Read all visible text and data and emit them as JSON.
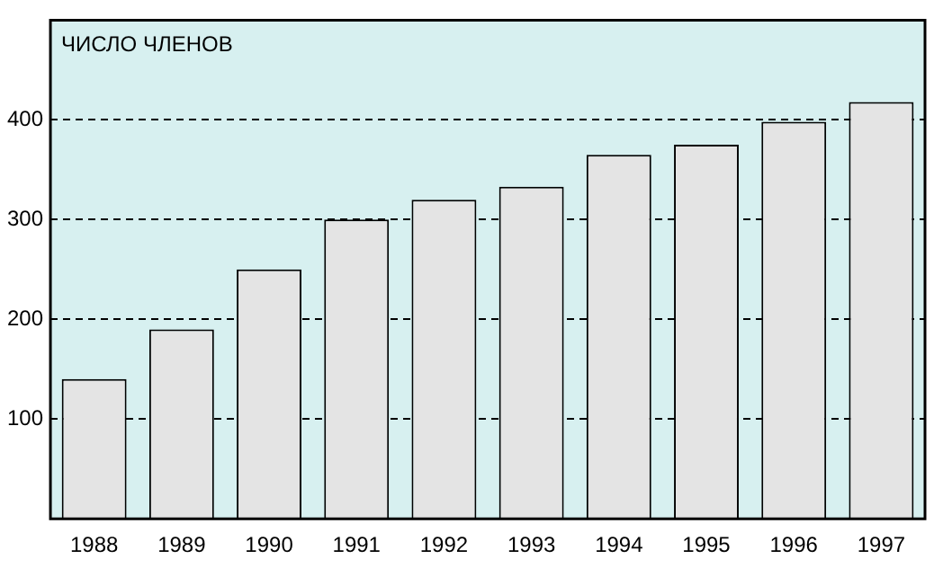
{
  "chart_data": {
    "type": "bar",
    "title": "ЧИСЛО ЧЛЕНОВ",
    "categories": [
      "1988",
      "1989",
      "1990",
      "1991",
      "1992",
      "1993",
      "1994",
      "1995",
      "1996",
      "1997"
    ],
    "values": [
      140,
      190,
      250,
      300,
      320,
      333,
      365,
      375,
      398,
      418
    ],
    "color": "#e4e4e4",
    "ylim": [
      0,
      500
    ],
    "yticks": [
      100,
      200,
      300,
      400
    ],
    "grid": "y"
  }
}
